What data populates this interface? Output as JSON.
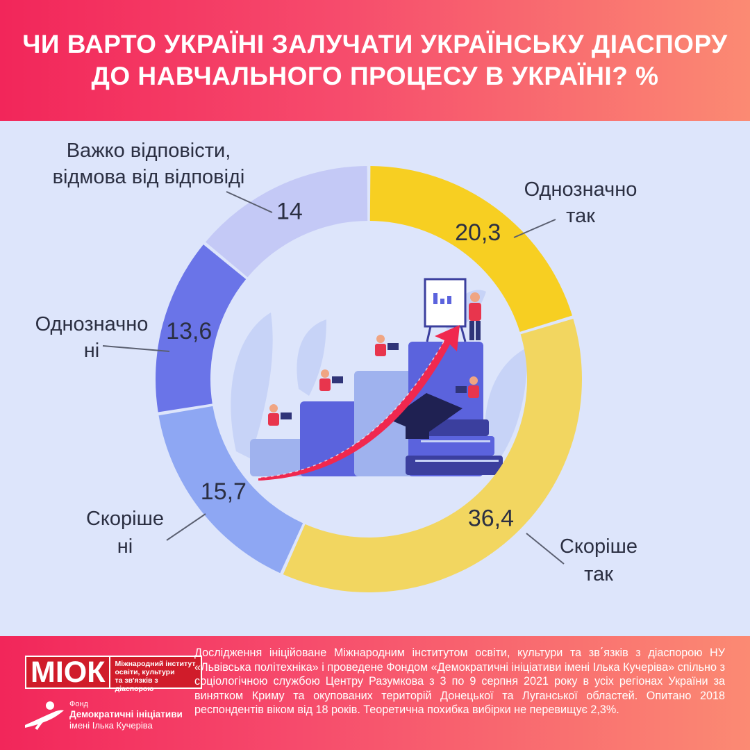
{
  "title": {
    "line1": "ЧИ ВАРТО УКРАЇНІ ЗАЛУЧАТИ УКРАЇНСЬКУ ДІАСПОРУ",
    "line2": "ДО НАВЧАЛЬНОГО ПРОЦЕСУ В УКРАЇНІ? %"
  },
  "chart_data": {
    "type": "pie",
    "variant": "donut",
    "slices": [
      {
        "label_lines": [
          "Однозначно",
          "так"
        ],
        "value": 20.3,
        "value_label": "20,3",
        "color": "#f7cf22"
      },
      {
        "label_lines": [
          "Скоріше",
          "так"
        ],
        "value": 36.4,
        "value_label": "36,4",
        "color": "#f2d660"
      },
      {
        "label_lines": [
          "Скоріше",
          "ні"
        ],
        "value": 15.7,
        "value_label": "15,7",
        "color": "#8ea7f3"
      },
      {
        "label_lines": [
          "Однозначно",
          "ні"
        ],
        "value": 13.6,
        "value_label": "13,6",
        "color": "#6a74e8"
      },
      {
        "label_lines": [
          "Важко відповісти,",
          "відмова від відповіді"
        ],
        "value": 14,
        "value_label": "14",
        "color": "#c4c9f6"
      }
    ]
  },
  "colors": {
    "background": "#dde5fb",
    "header_start": "#f2265a",
    "header_end": "#fb8a73",
    "text": "#2b2f42",
    "leader": "#5a5f70"
  },
  "illustration": {
    "icon": "education-growth-illustration"
  },
  "footer": {
    "logo_main": "МІОК",
    "logo_sub_lines": [
      "Міжнародний інститут",
      "освіти, культури",
      "та зв'язків з діаспорою"
    ],
    "fund_lines": [
      "Фонд",
      "Демократичні ініціативи",
      "імені Ілька Кучеріва"
    ],
    "text": "Дослідження ініційоване Міжнародним інститутом освіти, культури та зв΄язків з діаспорою НУ «Львівська політехніка» і проведене Фондом «Демократичні ініціативи імені Ілька Кучеріва» спільно з соціологічною службою Центру Разумкова з 3 по 9 серпня 2021 року в усіх регіонах України за винятком Криму та окупованих територій Донецької та Луганської областей. Опитано 2018 респондентів віком від 18 років. Теоретична похибка вибірки не перевищує 2,3%."
  }
}
